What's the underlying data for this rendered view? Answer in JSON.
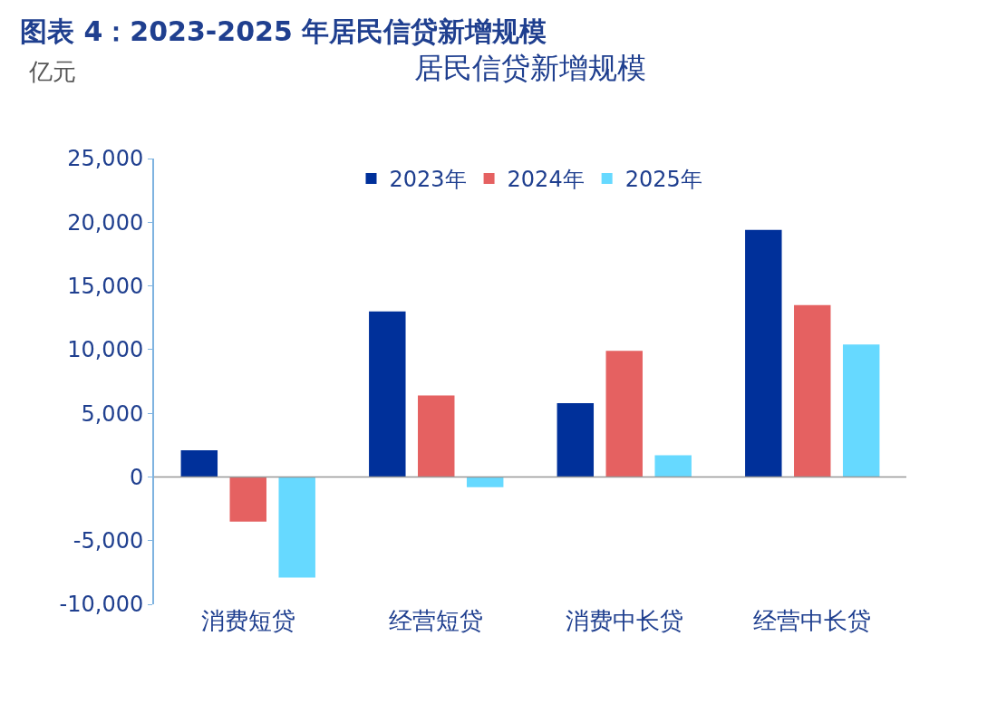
{
  "chart_data": {
    "type": "bar",
    "title": "图表 4：2023-2025 年居民信贷新增规模",
    "subtitle": "居民信贷新增规模",
    "ylabel": "亿元",
    "categories": [
      "消费短贷",
      "经营短贷",
      "消费中长贷",
      "经营中长贷"
    ],
    "series": [
      {
        "name": "2023年",
        "color": "#00309a",
        "values": [
          2100,
          13000,
          5800,
          19400
        ]
      },
      {
        "name": "2024年",
        "color": "#e56161",
        "values": [
          -3500,
          6400,
          9900,
          13500
        ]
      },
      {
        "name": "2025年",
        "color": "#66d9ff",
        "values": [
          -7900,
          -800,
          1700,
          10400
        ]
      }
    ],
    "ylim": [
      -10000,
      25000
    ],
    "yticks": [
      {
        "value": -10000,
        "label": "-10,000"
      },
      {
        "value": -5000,
        "label": "-5,000"
      },
      0,
      {
        "value": 5000,
        "label": "5,000"
      },
      {
        "value": 10000,
        "label": "10,000"
      },
      {
        "value": 15000,
        "label": "15,000"
      },
      {
        "value": 20000,
        "label": "20,000"
      },
      {
        "value": 25000,
        "label": "25,000"
      }
    ],
    "ref_lines": [
      {
        "axis": "y",
        "value": 0,
        "color": "#999999"
      }
    ],
    "legend": "top"
  }
}
